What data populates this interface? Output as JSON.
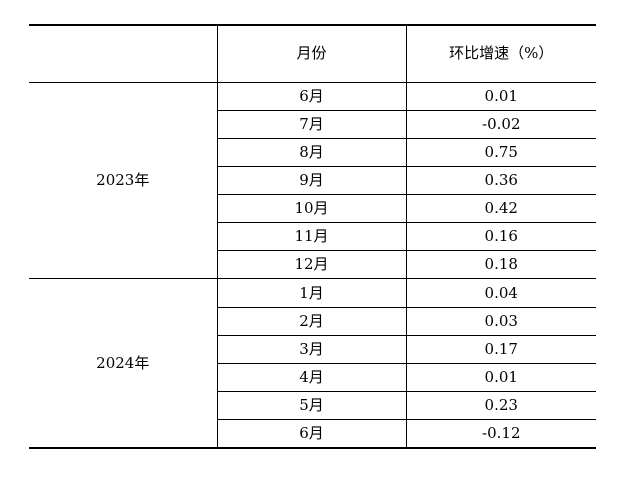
{
  "table": {
    "headers": {
      "year": "",
      "month": "月份",
      "growth": "环比增速（%）"
    },
    "groups": [
      {
        "year": "2023年",
        "rows": [
          {
            "month": "6月",
            "value": "0.01"
          },
          {
            "month": "7月",
            "value": "-0.02"
          },
          {
            "month": "8月",
            "value": "0.75"
          },
          {
            "month": "9月",
            "value": "0.36"
          },
          {
            "month": "10月",
            "value": "0.42"
          },
          {
            "month": "11月",
            "value": "0.16"
          },
          {
            "month": "12月",
            "value": "0.18"
          }
        ]
      },
      {
        "year": "2024年",
        "rows": [
          {
            "month": "1月",
            "value": "0.04"
          },
          {
            "month": "2月",
            "value": "0.03"
          },
          {
            "month": "3月",
            "value": "0.17"
          },
          {
            "month": "4月",
            "value": "0.01"
          },
          {
            "month": "5月",
            "value": "0.23"
          },
          {
            "month": "6月",
            "value": "-0.12"
          }
        ]
      }
    ]
  }
}
